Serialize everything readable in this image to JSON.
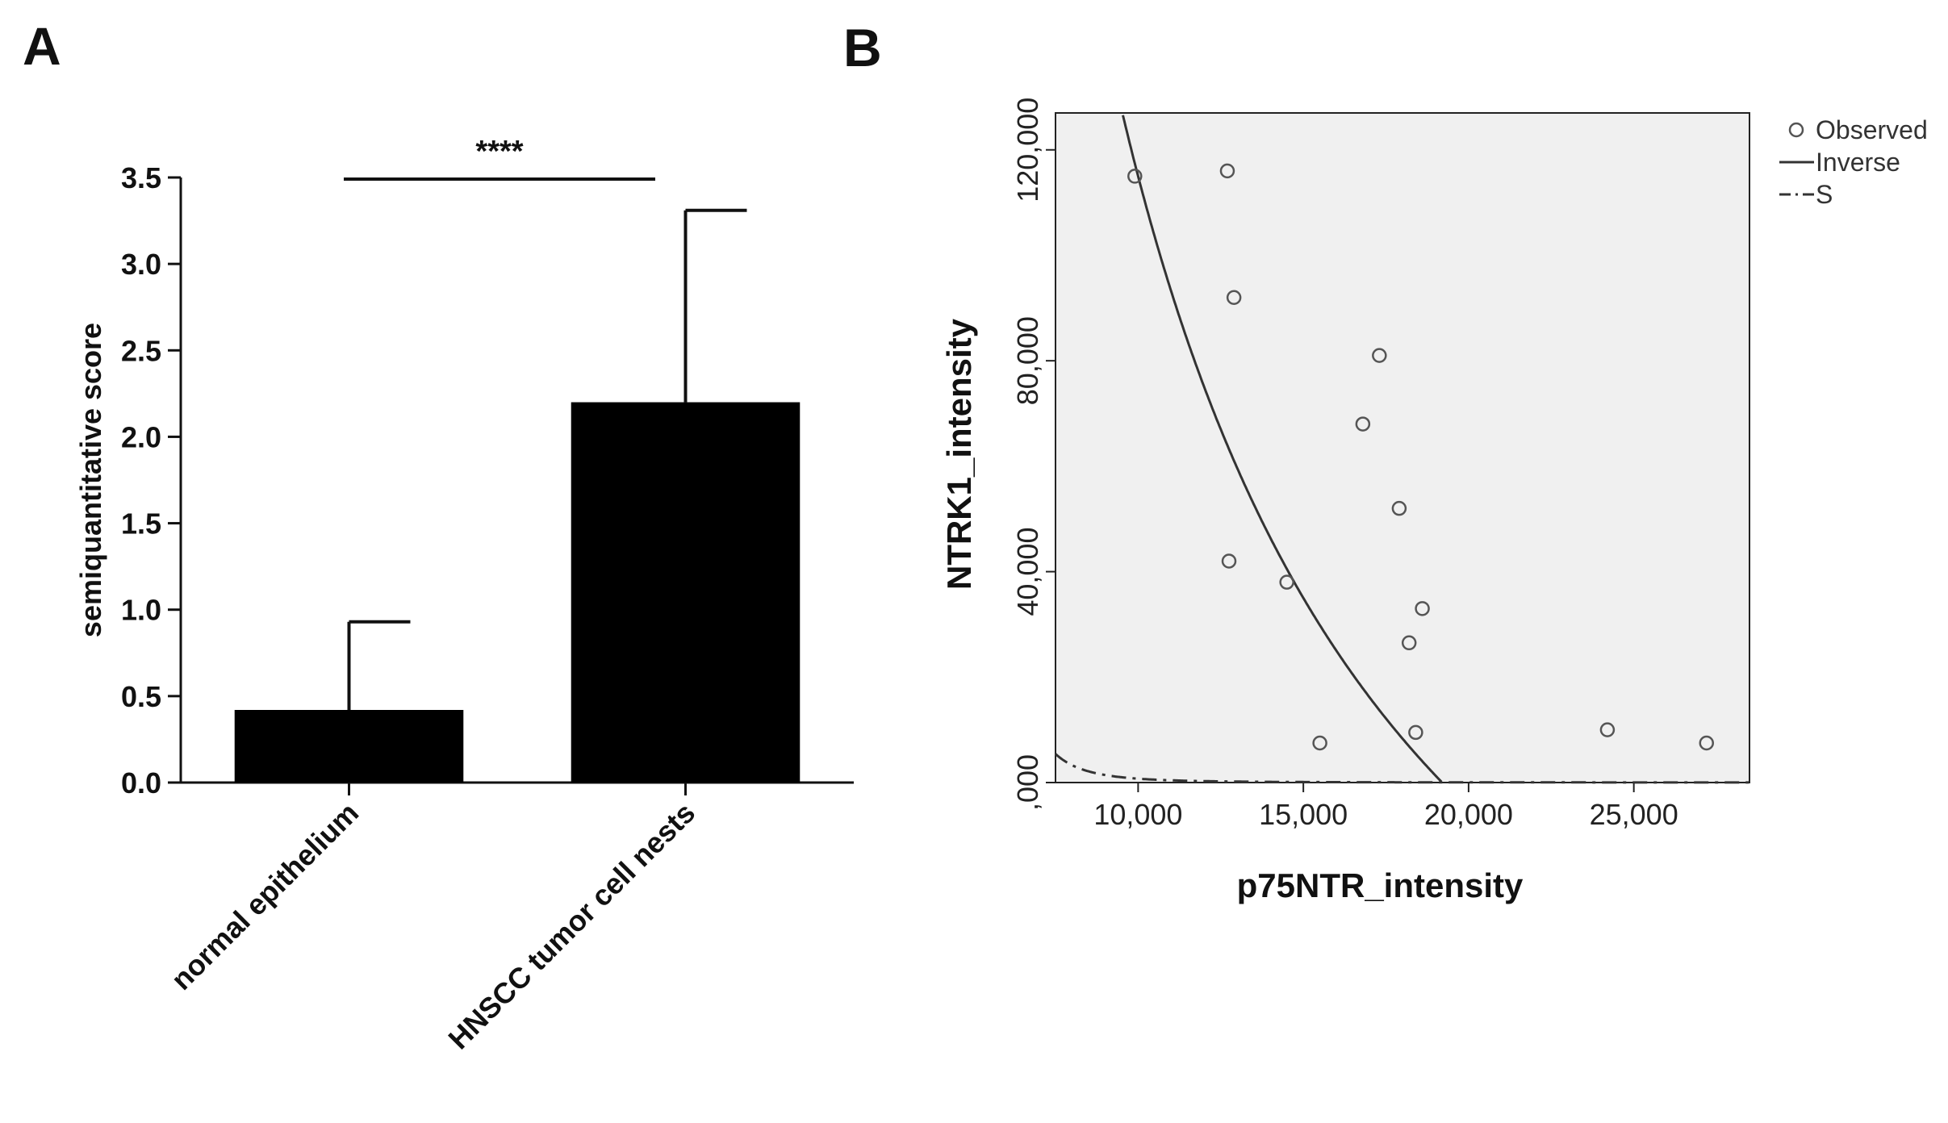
{
  "panels": {
    "a_label": "A",
    "b_label": "B"
  },
  "chart_data": [
    {
      "type": "bar",
      "panel": "A",
      "categories": [
        "normal epithelium",
        "HNSCC tumor cell nests"
      ],
      "values": [
        0.42,
        2.2
      ],
      "error_upper": [
        0.51,
        1.11
      ],
      "ylabel": "semiquantitative score",
      "ylim": [
        0,
        3.5
      ],
      "yticks": [
        "0.0",
        "0.5",
        "1.0",
        "1.5",
        "2.0",
        "2.5",
        "3.0",
        "3.5"
      ],
      "significance": "****",
      "colors": {
        "bar": "#000000",
        "axis": "#111111"
      }
    },
    {
      "type": "scatter",
      "panel": "B",
      "xlabel": "p75NTR_intensity",
      "ylabel": "NTRK1_intensity",
      "xlim": [
        7500,
        28500
      ],
      "ylim": [
        0,
        127000
      ],
      "xticks": [
        "10,000",
        "15,000",
        "20,000",
        "25,000"
      ],
      "yticks": [
        ",000",
        "40,000",
        "80,000",
        "120,000"
      ],
      "legend": [
        "Observed",
        "Inverse",
        "S"
      ],
      "observed": [
        {
          "x": 9900,
          "y": 115000
        },
        {
          "x": 12700,
          "y": 116000
        },
        {
          "x": 12900,
          "y": 92000
        },
        {
          "x": 12750,
          "y": 42000
        },
        {
          "x": 14500,
          "y": 38000
        },
        {
          "x": 15500,
          "y": 7500
        },
        {
          "x": 16800,
          "y": 68000
        },
        {
          "x": 17300,
          "y": 81000
        },
        {
          "x": 17900,
          "y": 52000
        },
        {
          "x": 18200,
          "y": 26500
        },
        {
          "x": 18400,
          "y": 9500
        },
        {
          "x": 18600,
          "y": 33000
        },
        {
          "x": 24200,
          "y": 10000
        },
        {
          "x": 27200,
          "y": 7500
        }
      ],
      "models": {
        "inverse": {
          "b0": -125000,
          "b1": 2400000000
        },
        "s": {
          "b0": 0.6,
          "b1": 60000
        }
      },
      "colors": {
        "plot_bg": "#f0f0f0",
        "marker": "#555555",
        "line": "#333333"
      }
    }
  ]
}
